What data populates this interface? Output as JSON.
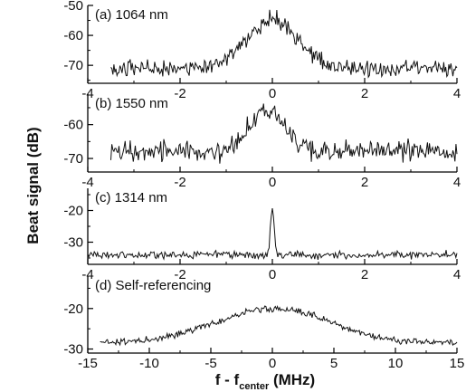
{
  "figure": {
    "ylabel": "Beat signal (dB)",
    "xlabel": {
      "main": "f - f",
      "sub": "center",
      "unit": " (MHz)"
    }
  },
  "chart_data": [
    {
      "type": "line",
      "annotation": "(a) 1064 nm",
      "xlim": [
        -4,
        4
      ],
      "ylim": [
        -76,
        -50
      ],
      "x_ticks": [
        -4,
        -2,
        0,
        2,
        4
      ],
      "y_ticks": [
        -50,
        -60,
        -70
      ],
      "trace_x_range": [
        -3.5,
        4
      ],
      "baseline": -71,
      "noise": 2.4,
      "peaks": [
        {
          "x": 0,
          "height": 16,
          "width": 0.55
        }
      ],
      "x": [
        -3.5,
        -3,
        -2.5,
        -2,
        -1.5,
        -1,
        -0.5,
        0,
        0.5,
        1,
        1.5,
        2,
        2.5,
        3,
        3.5,
        4
      ],
      "y": [
        -71,
        -71,
        -70,
        -71,
        -70,
        -68,
        -61,
        -55,
        -62,
        -68,
        -70,
        -71,
        -70,
        -69,
        -70,
        -70
      ]
    },
    {
      "type": "line",
      "annotation": "(b) 1550 nm",
      "xlim": [
        -4,
        4
      ],
      "ylim": [
        -74,
        -51
      ],
      "x_ticks": [
        -4,
        -2,
        0,
        2,
        4
      ],
      "y_ticks": [
        -60,
        -70
      ],
      "trace_x_range": [
        -3.5,
        4
      ],
      "baseline": -68,
      "noise": 2.6,
      "peaks": [
        {
          "x": -0.1,
          "height": 12,
          "width": 0.4
        }
      ],
      "x": [
        -3.5,
        -3,
        -2.5,
        -2,
        -1.5,
        -1,
        -0.5,
        0,
        0.5,
        1,
        1.5,
        2,
        2.5,
        3,
        3.5,
        4
      ],
      "y": [
        -68,
        -69,
        -67,
        -68,
        -67,
        -66,
        -63,
        -56,
        -63,
        -67,
        -68,
        -68,
        -67,
        -68,
        -68,
        -68
      ]
    },
    {
      "type": "line",
      "annotation": "(c) 1314 nm",
      "xlim": [
        -4,
        4
      ],
      "ylim": [
        -37,
        -13
      ],
      "x_ticks": [
        -4,
        -2,
        0,
        2,
        4
      ],
      "y_ticks": [
        -20,
        -30
      ],
      "trace_x_range": [
        -4,
        4
      ],
      "baseline": -34,
      "noise": 1.0,
      "peaks": [
        {
          "x": 0,
          "height": 15,
          "width": 0.04
        }
      ],
      "x": [
        -4,
        -3,
        -2,
        -1,
        -0.5,
        -0.1,
        0,
        0.1,
        0.5,
        1,
        2,
        3,
        4
      ],
      "y": [
        -34,
        -34,
        -34,
        -34,
        -34,
        -32,
        -19,
        -32,
        -34,
        -34,
        -34,
        -34,
        -34
      ]
    },
    {
      "type": "line",
      "annotation": "(d) Self-referencing",
      "xlim": [
        -15,
        15
      ],
      "ylim": [
        -31,
        -12
      ],
      "x_ticks": [
        -15,
        -10,
        -5,
        0,
        5,
        10,
        15
      ],
      "y_ticks": [
        -20,
        -30
      ],
      "trace_x_range": [
        -14,
        15
      ],
      "baseline": -28.5,
      "noise": 0.7,
      "peaks": [
        {
          "x": 0,
          "height": 8.5,
          "width": 4.6
        }
      ],
      "x": [
        -14,
        -12,
        -10,
        -8,
        -6,
        -4,
        -2,
        0,
        2,
        4,
        6,
        8,
        10,
        12,
        14,
        15
      ],
      "y": [
        -28.5,
        -28.5,
        -28,
        -27.5,
        -26,
        -24,
        -21.5,
        -20,
        -21.5,
        -24,
        -26,
        -27.5,
        -28,
        -28.5,
        -28.5,
        -28.5
      ]
    }
  ]
}
